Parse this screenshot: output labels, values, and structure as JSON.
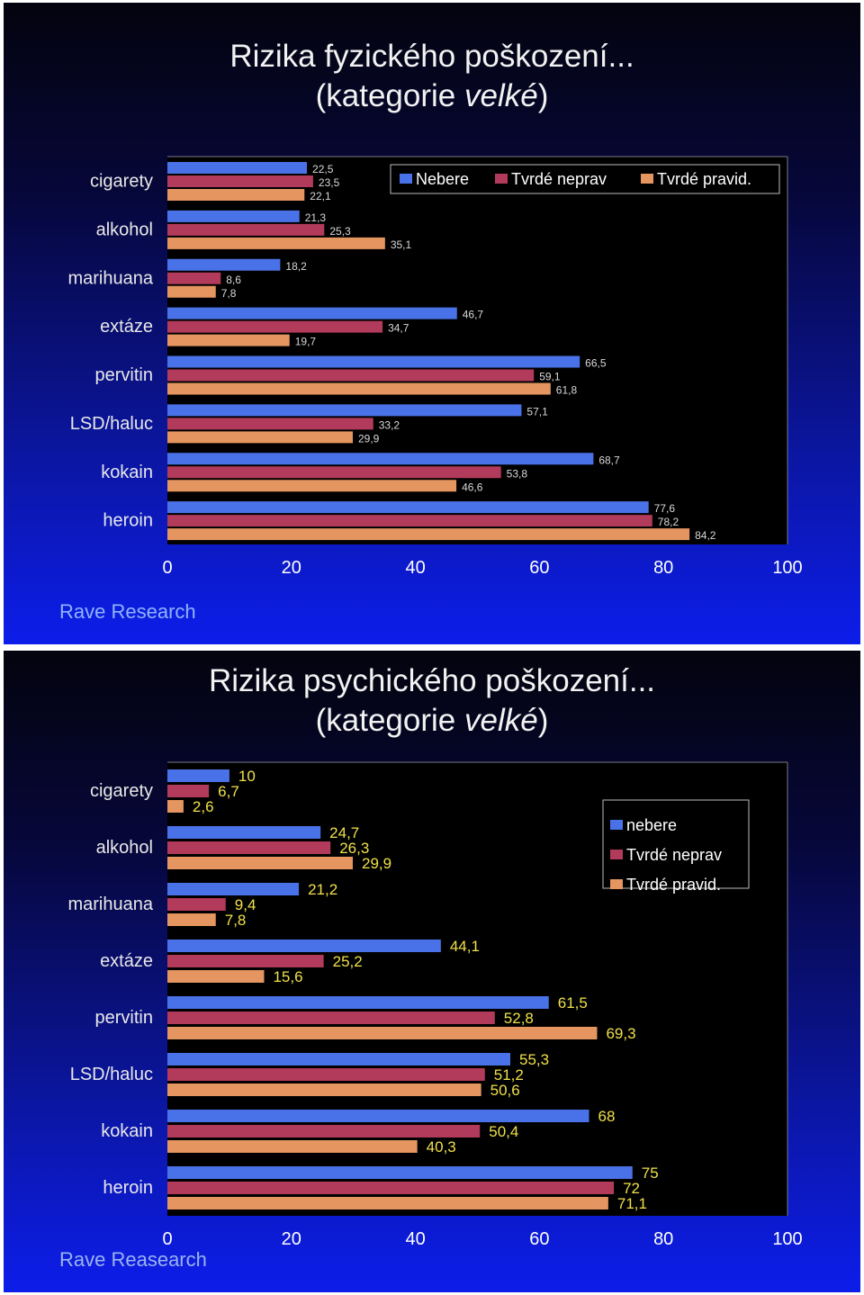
{
  "chart_data": [
    {
      "type": "bar",
      "orientation": "horizontal",
      "title": "Rizika fyzického poškození...",
      "subtitle": {
        "prefix": "(kategorie ",
        "emphasis": "velké",
        "suffix": ")"
      },
      "categories": [
        "cigarety",
        "alkohol",
        "marihuana",
        "extáze",
        "pervitin",
        "LSD/haluc",
        "kokain",
        "heroin"
      ],
      "series": [
        {
          "name": "Nebere",
          "color": "#4a72e8",
          "values": [
            22.5,
            21.3,
            18.2,
            46.7,
            66.5,
            57.1,
            68.7,
            77.6
          ],
          "labels": [
            "22,5",
            "21,3",
            "18,2",
            "46,7",
            "66,5",
            "57,1",
            "68,7",
            "77,6"
          ]
        },
        {
          "name": "Tvrdé neprav",
          "color": "#b23a5a",
          "values": [
            23.5,
            25.3,
            8.6,
            34.7,
            59.1,
            33.2,
            53.8,
            78.2
          ],
          "labels": [
            "23,5",
            "25,3",
            "8,6",
            "34,7",
            "59,1",
            "33,2",
            "53,8",
            "78,2"
          ]
        },
        {
          "name": "Tvrdé pravid.",
          "color": "#e49560",
          "values": [
            22.1,
            35.1,
            7.8,
            19.7,
            61.8,
            29.9,
            46.6,
            84.2
          ],
          "labels": [
            "22,1",
            "35,1",
            "7,8",
            "19,7",
            "61,8",
            "29,9",
            "46,6",
            "84,2"
          ]
        }
      ],
      "xlim": [
        0,
        100
      ],
      "xticks": [
        "0",
        "20",
        "40",
        "60",
        "80",
        "100"
      ],
      "legend": "top-right, horizontal",
      "label_color": "#d8d8d8",
      "footer": "Rave Research"
    },
    {
      "type": "bar",
      "orientation": "horizontal",
      "title": "Rizika psychického poškození...",
      "subtitle": {
        "prefix": "(kategorie ",
        "emphasis": "velké",
        "suffix": ")"
      },
      "categories": [
        "cigarety",
        "alkohol",
        "marihuana",
        "extáze",
        "pervitin",
        "LSD/haluc",
        "kokain",
        "heroin"
      ],
      "series": [
        {
          "name": "nebere",
          "color": "#4a72e8",
          "values": [
            10,
            24.7,
            21.2,
            44.1,
            61.5,
            55.3,
            68,
            75
          ],
          "labels": [
            "10",
            "24,7",
            "21,2",
            "44,1",
            "61,5",
            "55,3",
            "68",
            "75"
          ]
        },
        {
          "name": "Tvrdé neprav",
          "color": "#b23a5a",
          "values": [
            6.7,
            26.3,
            9.4,
            25.2,
            52.8,
            51.2,
            50.4,
            72
          ],
          "labels": [
            "6,7",
            "26,3",
            "9,4",
            "25,2",
            "52,8",
            "51,2",
            "50,4",
            "72"
          ]
        },
        {
          "name": "Tvrdé pravid.",
          "color": "#e49560",
          "values": [
            2.6,
            29.9,
            7.8,
            15.6,
            69.3,
            50.6,
            40.3,
            71.1
          ],
          "labels": [
            "2,6",
            "29,9",
            "7,8",
            "15,6",
            "69,3",
            "50,6",
            "40,3",
            "71,1"
          ]
        }
      ],
      "xlim": [
        0,
        100
      ],
      "xticks": [
        "0",
        "20",
        "40",
        "60",
        "80",
        "100"
      ],
      "legend": "top-right, vertical",
      "label_color": "#f0e04a",
      "footer": "Rave Reasearch"
    }
  ]
}
